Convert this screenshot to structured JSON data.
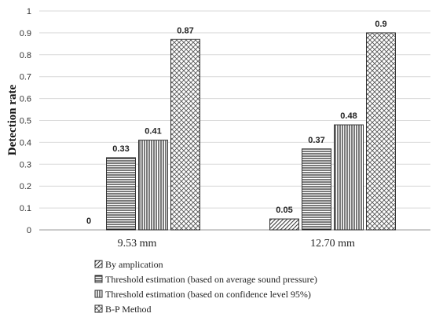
{
  "chart_data": {
    "type": "bar",
    "title": "",
    "xlabel": "",
    "ylabel": "Detection rate",
    "ylim": [
      0,
      1
    ],
    "yticks": [
      "0",
      "0.1",
      "0.2",
      "0.3",
      "0.4",
      "0.5",
      "0.6",
      "0.7",
      "0.8",
      "0.9",
      "1"
    ],
    "grid": true,
    "legend_position": "bottom",
    "categories": [
      "9.53 mm",
      "12.70 mm"
    ],
    "series": [
      {
        "name": "By amplication",
        "values": [
          0,
          0.05
        ],
        "labels": [
          "0",
          "0.05"
        ],
        "pattern": "diag"
      },
      {
        "name": "Threshold estimation (based on average sound pressure)",
        "values": [
          0.33,
          0.37
        ],
        "labels": [
          "0.33",
          "0.37"
        ],
        "pattern": "horizontal"
      },
      {
        "name": "Threshold estimation (based on confidence level 95%)",
        "values": [
          0.41,
          0.48
        ],
        "labels": [
          "0.41",
          "0.48"
        ],
        "pattern": "vertical"
      },
      {
        "name": "B-P Method",
        "values": [
          0.87,
          0.9
        ],
        "labels": [
          "0.87",
          "0.9"
        ],
        "pattern": "cross"
      }
    ]
  }
}
